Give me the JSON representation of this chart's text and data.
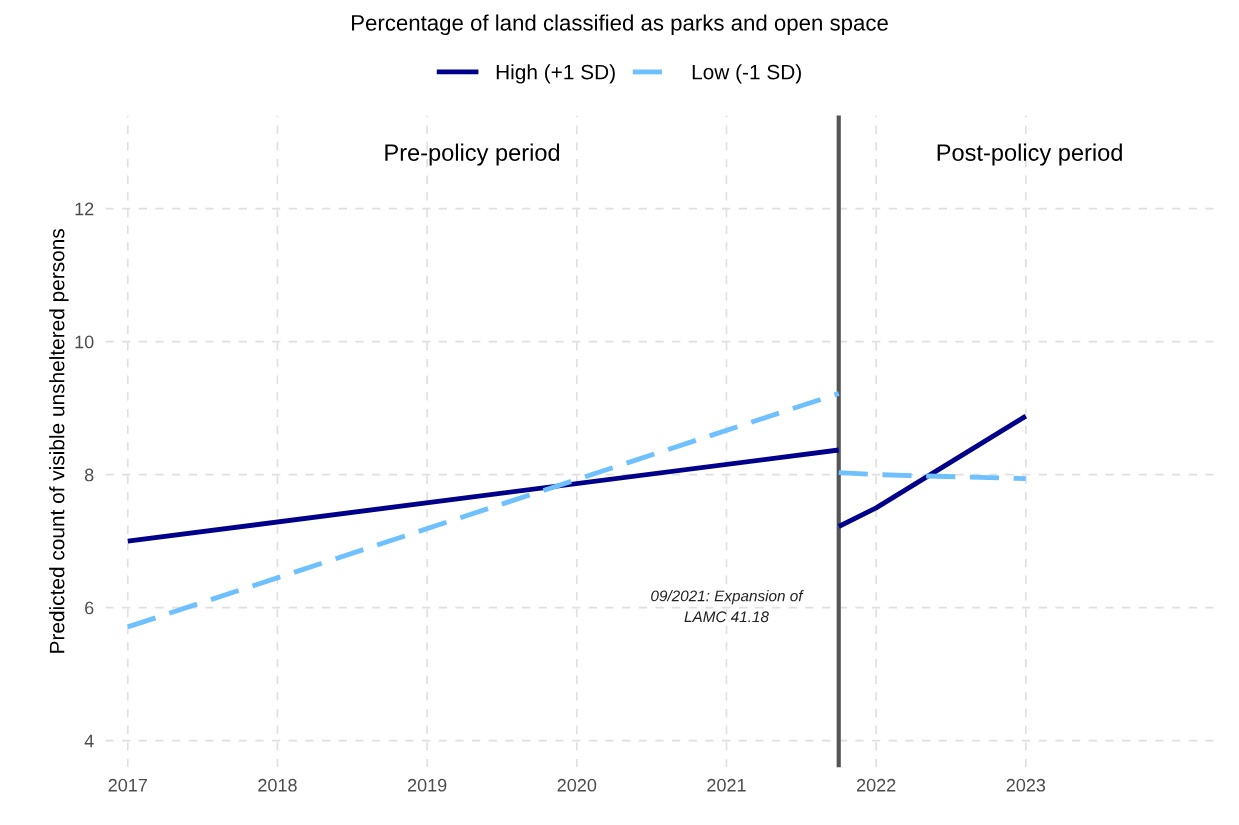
{
  "chart_data": {
    "type": "line",
    "title": "Percentage of land classified as parks and open space",
    "ylabel": "Predicted count of visible unsheltered persons",
    "series": [
      {
        "name": "High (+1 SD)",
        "color": "#00008b",
        "line_style": "solid",
        "x": [
          2017,
          2021.75,
          null,
          2021.75,
          2022,
          2023
        ],
        "values": [
          7.0,
          8.37,
          null,
          7.22,
          7.5,
          8.88
        ]
      },
      {
        "name": "Low (-1 SD)",
        "color": "#6ec0ff",
        "line_style": "dashed",
        "x": [
          2017,
          2021.75,
          null,
          2021.75,
          2022,
          2023
        ],
        "values": [
          5.71,
          9.22,
          null,
          8.03,
          8.0,
          7.94
        ]
      }
    ],
    "xlim": [
      2016.85,
      2024.3
    ],
    "xticks": [
      2017,
      2018,
      2019,
      2020,
      2021,
      2022,
      2023
    ],
    "ylim": [
      3.6,
      13.4
    ],
    "yticks": [
      4,
      6,
      8,
      10,
      12
    ],
    "ref_lines": [
      {
        "axis": "x",
        "value": 2021.75,
        "color": "#555555",
        "label": "09/2021: Expansion of\nLAMC 41.18"
      }
    ],
    "annotations": [
      "Pre-policy period",
      "Post-policy period"
    ],
    "grid": true,
    "legend": "top",
    "marker": "none"
  }
}
